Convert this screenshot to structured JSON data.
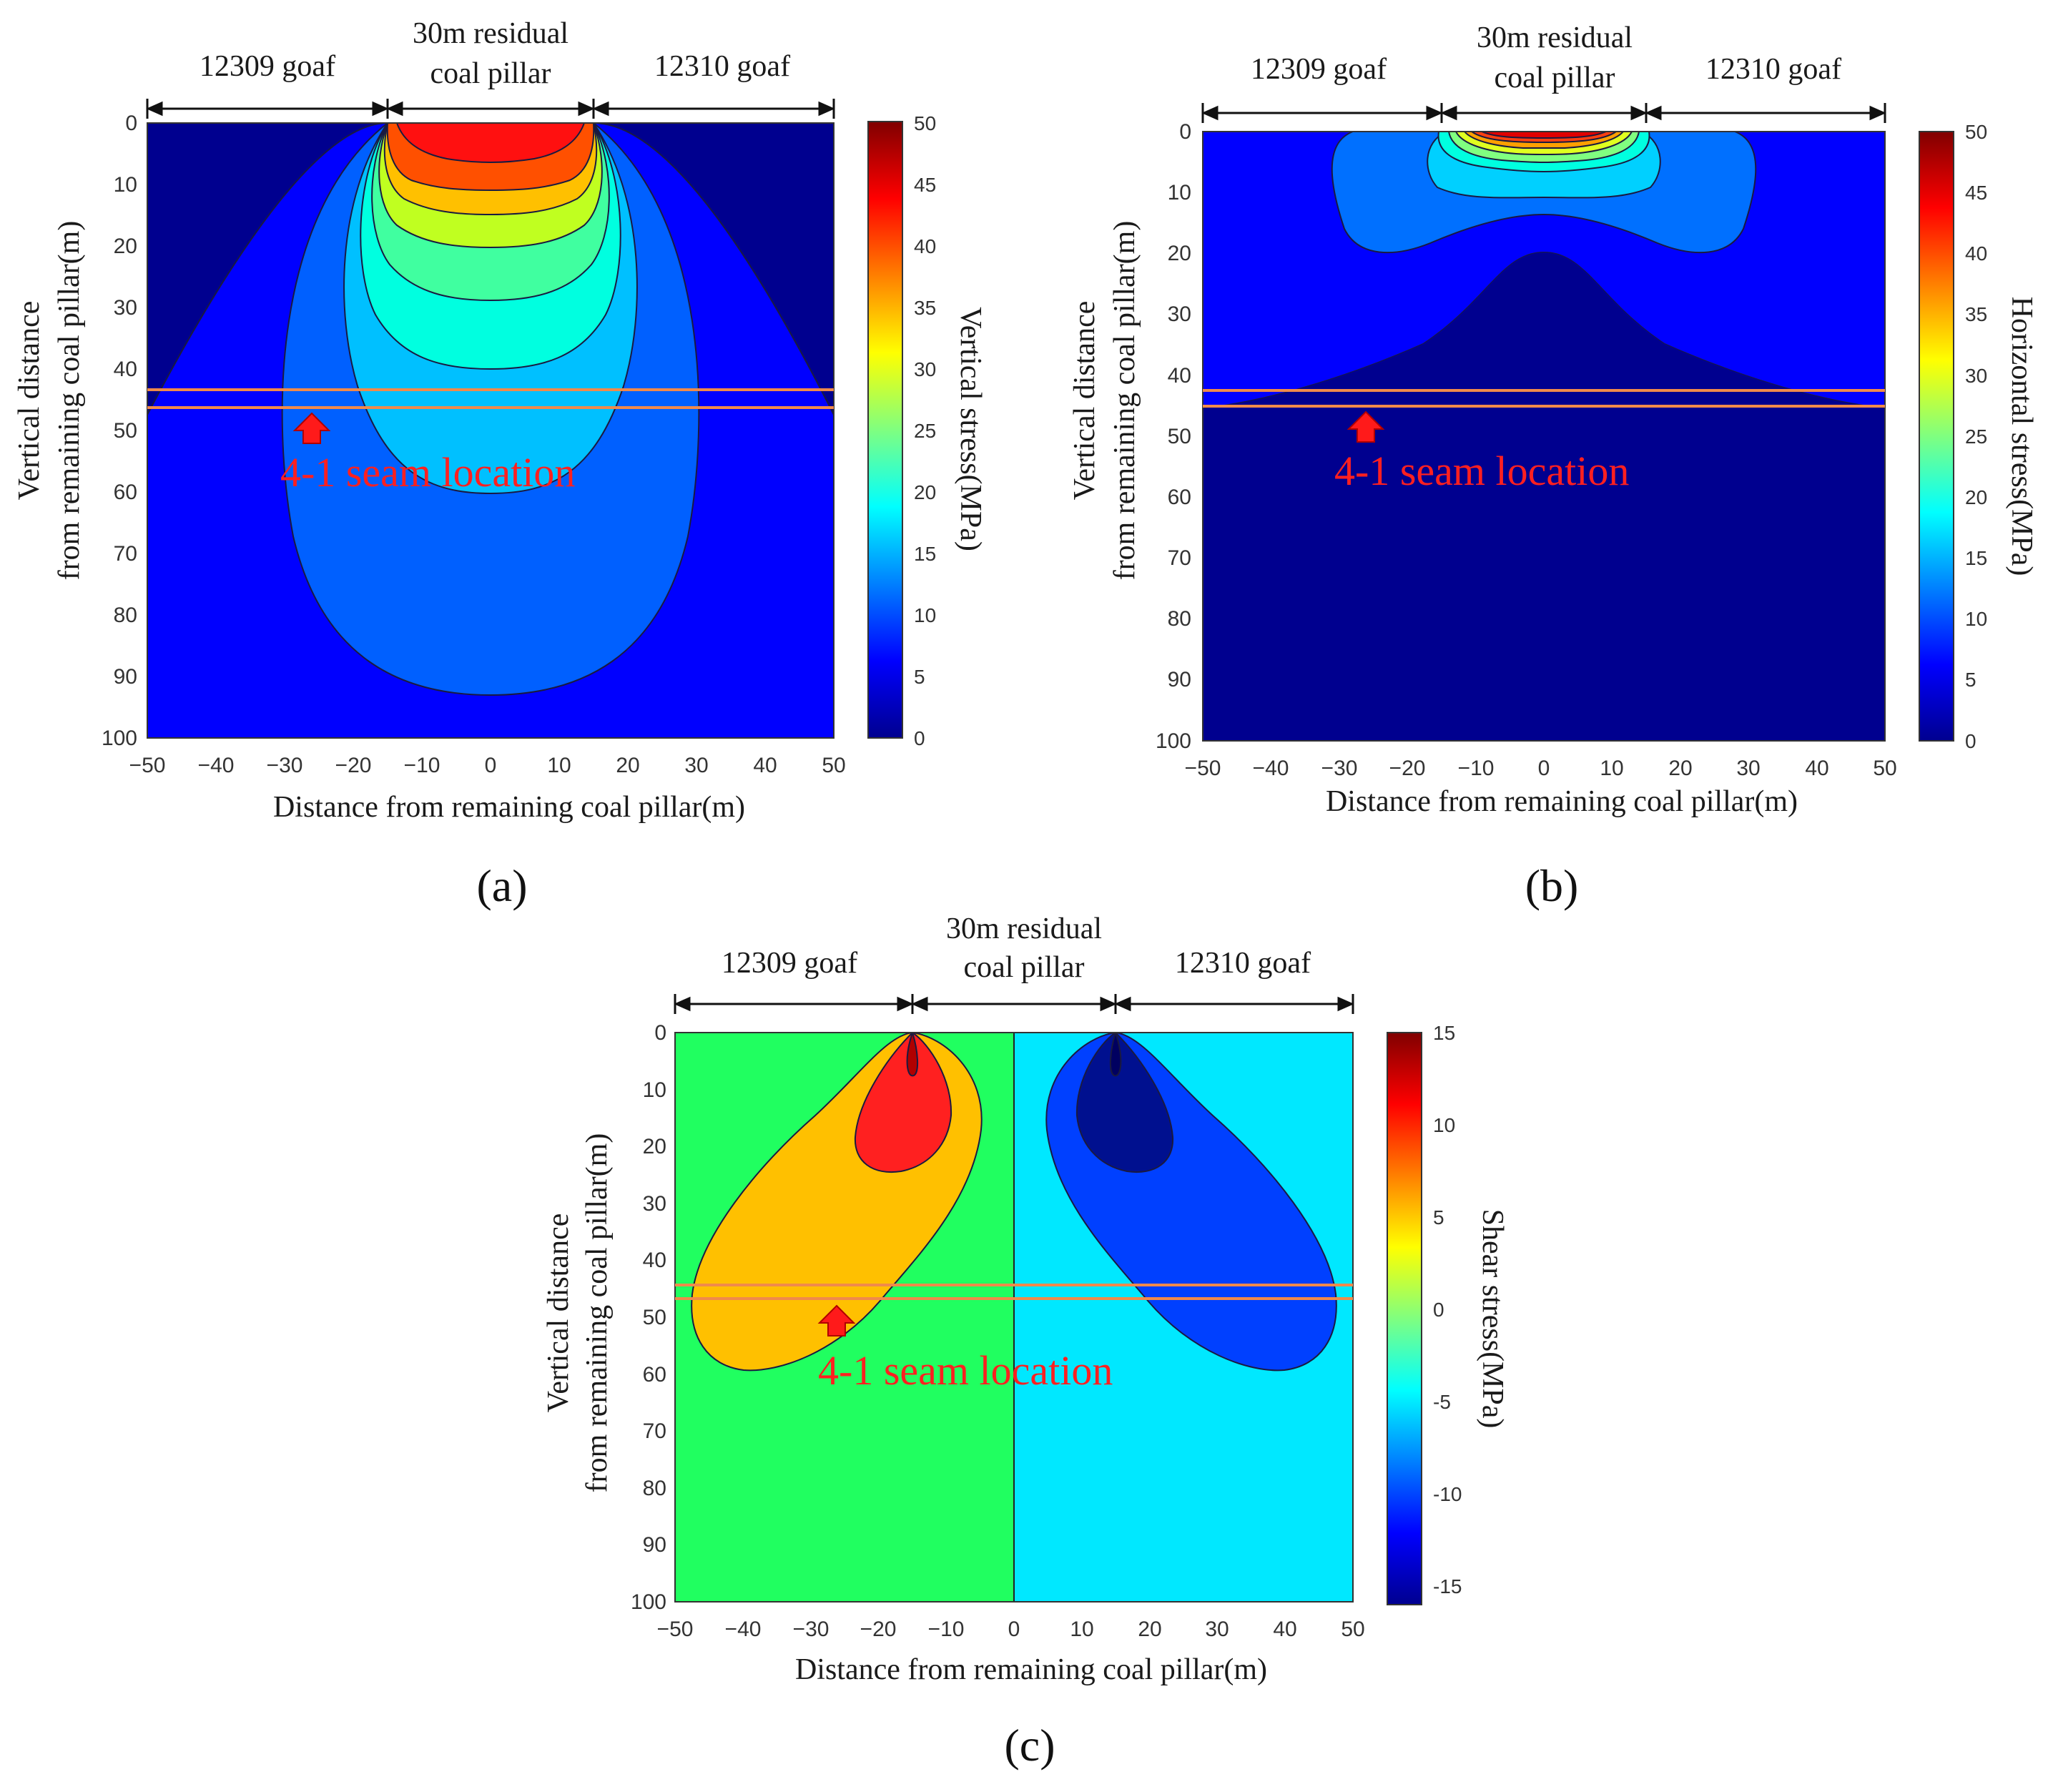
{
  "figure": {
    "panel_labels": [
      "(a)",
      "(b)",
      "(c)"
    ]
  },
  "colors": {
    "jet": [
      "#00008f",
      "#0000ff",
      "#0080ff",
      "#00ffff",
      "#80ff80",
      "#ffff00",
      "#ff8000",
      "#ff0000",
      "#800000"
    ],
    "seam_line": "#f08a4b",
    "seam_text": "#ff2020",
    "arrow": "#ff1a1a"
  },
  "chart_data": [
    {
      "id": "a",
      "type": "contour",
      "title": "",
      "xlabel": "Distance from remaining coal pillar(m)",
      "ylabel_line1": "Vertical distance",
      "ylabel_line2": "from  remaining coal pillar(m)",
      "xlim": [
        -50,
        50
      ],
      "ylim": [
        0,
        100
      ],
      "x_ticks": [
        "−50",
        "−40",
        "−30",
        "−20",
        "−10",
        "0",
        "10",
        "20",
        "30",
        "40",
        "50"
      ],
      "y_ticks": [
        "0",
        "10",
        "20",
        "30",
        "40",
        "50",
        "60",
        "70",
        "80",
        "90",
        "100"
      ],
      "colorbar_label": "Vertical stress(MPa)",
      "colorbar_range": [
        0,
        50
      ],
      "colorbar_ticks": [
        "0",
        "5",
        "10",
        "15",
        "20",
        "25",
        "30",
        "35",
        "40",
        "45",
        "50"
      ],
      "regions": [
        {
          "label": "12309 goaf",
          "from": -50,
          "to": -15
        },
        {
          "label_line1": "30m residual",
          "label_line2": "coal pillar",
          "from": -15,
          "to": 15
        },
        {
          "label": "12310 goaf",
          "from": 15,
          "to": 50
        }
      ],
      "seam_depths": [
        44.5,
        46.5
      ],
      "seam_label": "4-1 seam location",
      "seam_arrow": {
        "x": -26,
        "y": 50
      },
      "contour_levels": [
        0,
        5,
        10,
        15,
        20,
        25,
        30,
        35,
        40,
        45,
        50
      ],
      "pillar_bulb_depths_by_level": {
        "5": 93,
        "10": 60,
        "15": 44,
        "20": 34,
        "25": 26,
        "30": 20,
        "35": 15,
        "40": 11
      }
    },
    {
      "id": "b",
      "type": "contour",
      "title": "",
      "xlabel": "Distance from remaining coal pillar(m)",
      "ylabel_line1": "Vertical distance",
      "ylabel_line2": "from  remaining coal pillar(m)",
      "xlim": [
        -50,
        50
      ],
      "ylim": [
        0,
        100
      ],
      "x_ticks": [
        "−50",
        "−40",
        "−30",
        "−20",
        "−10",
        "0",
        "10",
        "20",
        "30",
        "40",
        "50"
      ],
      "y_ticks": [
        "0",
        "10",
        "20",
        "30",
        "40",
        "50",
        "60",
        "70",
        "80",
        "90",
        "100"
      ],
      "colorbar_label": "Horizontal stress(MPa)",
      "colorbar_range": [
        0,
        50
      ],
      "colorbar_ticks": [
        "0",
        "5",
        "10",
        "15",
        "20",
        "25",
        "30",
        "35",
        "40",
        "45",
        "50"
      ],
      "regions": [
        {
          "label": "12309 goaf",
          "from": -50,
          "to": -15
        },
        {
          "label_line1": "30m residual",
          "label_line2": "coal pillar",
          "from": -15,
          "to": 15
        },
        {
          "label": "12310 goaf",
          "from": 15,
          "to": 50
        }
      ],
      "seam_depths": [
        42.5,
        45
      ],
      "seam_label": "4-1 seam location",
      "seam_arrow": {
        "x": -26,
        "y": 48
      }
    },
    {
      "id": "c",
      "type": "contour",
      "title": "",
      "xlabel": "Distance from remaining coal pillar(m)",
      "ylabel_line1": "Vertical distance",
      "ylabel_line2": "from  remaining coal pillar(m)",
      "xlim": [
        -50,
        50
      ],
      "ylim": [
        0,
        100
      ],
      "x_ticks": [
        "−50",
        "−40",
        "−30",
        "−20",
        "−10",
        "0",
        "10",
        "20",
        "30",
        "40",
        "50"
      ],
      "y_ticks": [
        "0",
        "10",
        "20",
        "30",
        "40",
        "50",
        "60",
        "70",
        "80",
        "90",
        "100"
      ],
      "colorbar_label": "Shear stress(MPa)",
      "colorbar_range": [
        -16,
        15
      ],
      "colorbar_ticks": [
        "-15",
        "-10",
        "-5",
        "0",
        "5",
        "10",
        "15"
      ],
      "colorbar_tick_values": [
        -15,
        -10,
        -5,
        0,
        5,
        10,
        15
      ],
      "regions": [
        {
          "label": "12309 goaf",
          "from": -50,
          "to": -15
        },
        {
          "label_line1": "30m residual",
          "label_line2": "coal pillar",
          "from": -15,
          "to": 15
        },
        {
          "label": "12310 goaf",
          "from": 15,
          "to": 50
        }
      ],
      "seam_depths": [
        44.5,
        47
      ],
      "seam_label": "4-1 seam location",
      "seam_arrow": {
        "x": -26,
        "y": 50
      },
      "lobes": [
        {
          "sign": "positive",
          "outer_max_depth": 59,
          "inner_max_depth": 25
        },
        {
          "sign": "negative",
          "outer_max_depth": 59,
          "inner_max_depth": 25
        }
      ]
    }
  ]
}
